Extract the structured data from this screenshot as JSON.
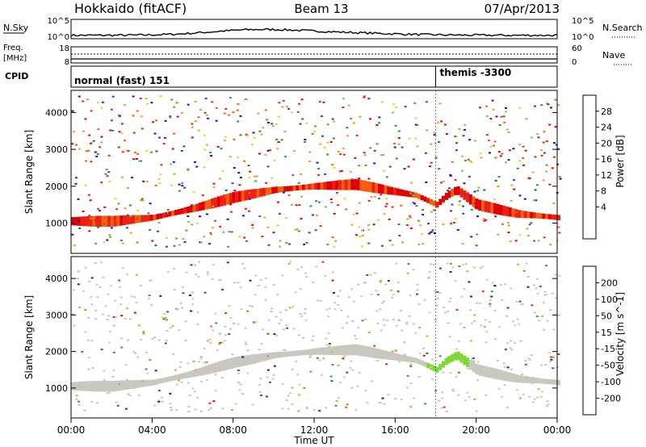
{
  "header": {
    "title": "Hokkaido (fitACF)",
    "beam": "Beam 13",
    "date": "07/Apr/2013"
  },
  "summary": {
    "nsky_label": "N.Sky",
    "nsearch_label": "N.Search",
    "freq_label": "Freq.",
    "freq_unit": "[MHz]",
    "nave_label": "Nave",
    "cpid_label": "CPID",
    "noise_ticks": [
      "10^5",
      "10^0"
    ],
    "freq_ticks": [
      "18",
      "8"
    ],
    "nave_ticks": [
      "60",
      "0"
    ],
    "cpid_segments": [
      {
        "label": "normal (fast) 151",
        "start": 0,
        "end": 18
      },
      {
        "label": "themis -3300",
        "start": 18,
        "end": 24
      }
    ]
  },
  "time_axis": {
    "label": "Time UT",
    "ticks": [
      "00:00",
      "04:00",
      "08:00",
      "12:00",
      "16:00",
      "20:00",
      "00:00"
    ]
  },
  "chart_data": [
    {
      "type": "heatmap",
      "panel": "power",
      "ylabel": "Slant Range [km]",
      "yticks": [
        "1000",
        "2000",
        "3000",
        "4000"
      ],
      "colorbar_label": "Power [dB]",
      "colorbar_ticks": [
        "28",
        "24",
        "20",
        "16",
        "12",
        "8",
        "4"
      ],
      "colorbar_colors": [
        "#1010e0",
        "#2050a0",
        "#2e8b57",
        "#78c850",
        "#f0d020",
        "#f8a020",
        "#f06010",
        "#f02010",
        "#e00000"
      ],
      "xlim": [
        0,
        24
      ],
      "ylim": [
        180,
        4600
      ],
      "main_band": {
        "hours": [
          0,
          2,
          4,
          6,
          8,
          10,
          12,
          14,
          16,
          17,
          18,
          18.5,
          19,
          20,
          22,
          24
        ],
        "range_km": [
          1050,
          1050,
          1150,
          1400,
          1700,
          1900,
          2000,
          2050,
          1850,
          1750,
          1500,
          1750,
          1900,
          1500,
          1250,
          1150
        ]
      }
    },
    {
      "type": "heatmap",
      "panel": "velocity",
      "ylabel": "Slant Range [km]",
      "yticks": [
        "1000",
        "2000",
        "3000",
        "4000"
      ],
      "colorbar_label": "Velocity [m s^-1]",
      "colorbar_ticks": [
        "200",
        "100",
        "50",
        "15",
        "-15",
        "-50",
        "-100",
        "-200"
      ],
      "colorbar_colors": [
        "#1818c8",
        "#2e6e3e",
        "#3a9a3a",
        "#7ed830",
        "#c8c8c0",
        "#f0a020",
        "#f07010",
        "#f03010",
        "#e00000"
      ],
      "xlim": [
        0,
        24
      ],
      "ylim": [
        180,
        4600
      ]
    }
  ]
}
